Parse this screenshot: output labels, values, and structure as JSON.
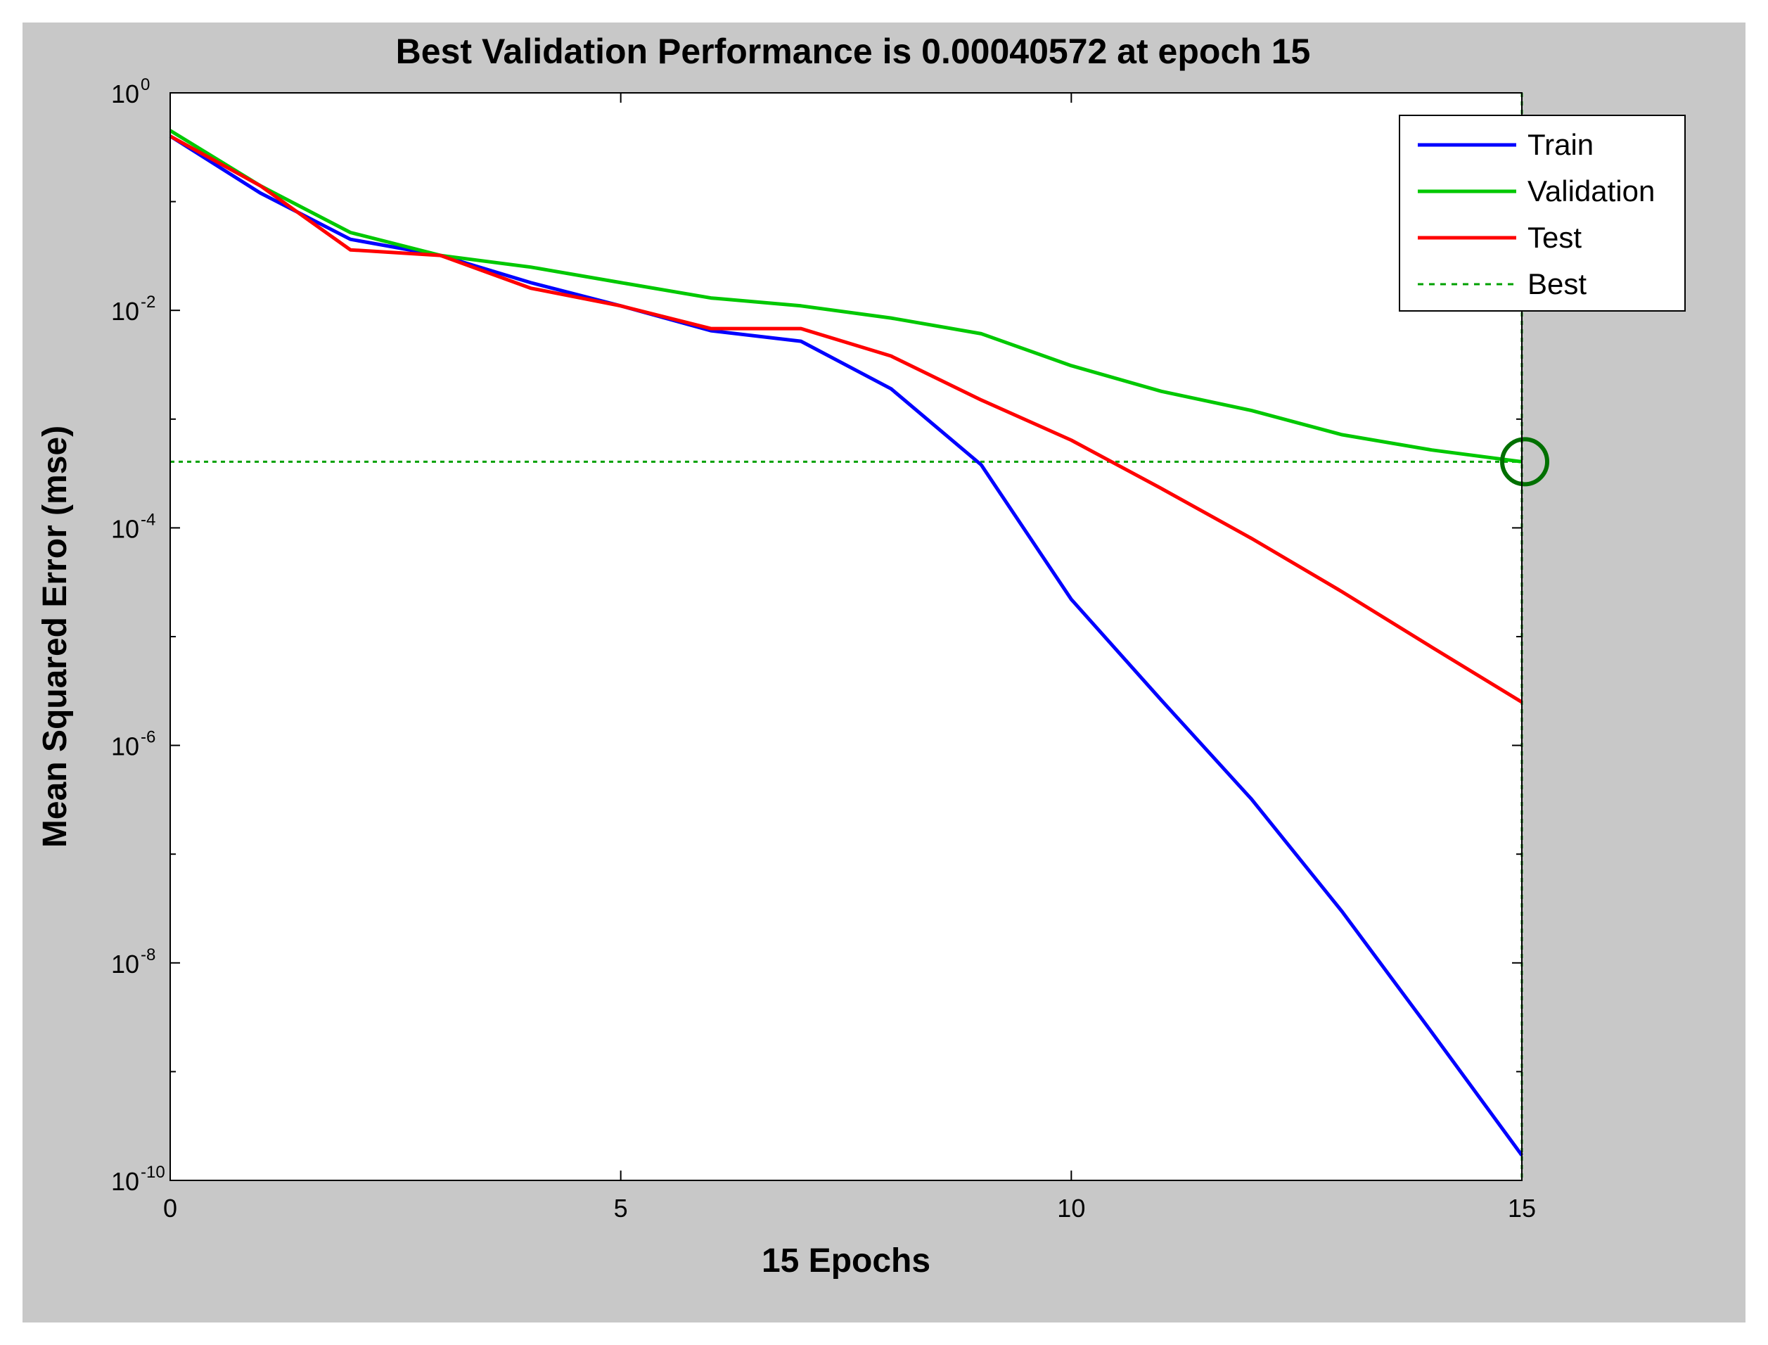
{
  "chart_data": {
    "type": "line",
    "title": "Best Validation Performance is 0.00040572 at epoch 15",
    "xlabel": "15 Epochs",
    "ylabel": "Mean Squared Error  (mse)",
    "xlim": [
      0,
      15
    ],
    "ylim_log10": [
      -10,
      0
    ],
    "yscale": "log",
    "x_ticks": [
      "0",
      "5",
      "10",
      "15"
    ],
    "y_ticks": [
      {
        "base": "10",
        "exp": "0"
      },
      {
        "base": "10",
        "exp": "-2"
      },
      {
        "base": "10",
        "exp": "-4"
      },
      {
        "base": "10",
        "exp": "-6"
      },
      {
        "base": "10",
        "exp": "-8"
      },
      {
        "base": "10",
        "exp": "-10"
      }
    ],
    "x": [
      0,
      1,
      2,
      3,
      4,
      5,
      6,
      7,
      8,
      9,
      10,
      11,
      12,
      13,
      14,
      15
    ],
    "series": [
      {
        "name": "Train",
        "color": "#0000ff",
        "style": "solid",
        "values": [
          0.4,
          0.12,
          0.045,
          0.032,
          0.018,
          0.011,
          0.0065,
          0.0052,
          0.0019,
          0.00038,
          2.2e-05,
          2.6e-06,
          3.2e-07,
          3e-08,
          2.3e-09,
          1.7e-10
        ]
      },
      {
        "name": "Validation",
        "color": "#00c800",
        "style": "solid",
        "values": [
          0.45,
          0.14,
          0.052,
          0.032,
          0.025,
          0.018,
          0.013,
          0.011,
          0.0085,
          0.0061,
          0.0031,
          0.0018,
          0.0012,
          0.00072,
          0.00052,
          0.00040572
        ]
      },
      {
        "name": "Test",
        "color": "#ff0000",
        "style": "solid",
        "values": [
          0.4,
          0.14,
          0.036,
          0.032,
          0.016,
          0.011,
          0.0068,
          0.0068,
          0.0038,
          0.0015,
          0.00064,
          0.00023,
          8e-05,
          2.6e-05,
          8e-06,
          2.5e-06
        ]
      },
      {
        "name": "Best",
        "color": "#00a000",
        "style": "dotted",
        "best_epoch": 15,
        "best_value": 0.00040572
      }
    ],
    "legend_position": "top-right",
    "grid": false
  }
}
